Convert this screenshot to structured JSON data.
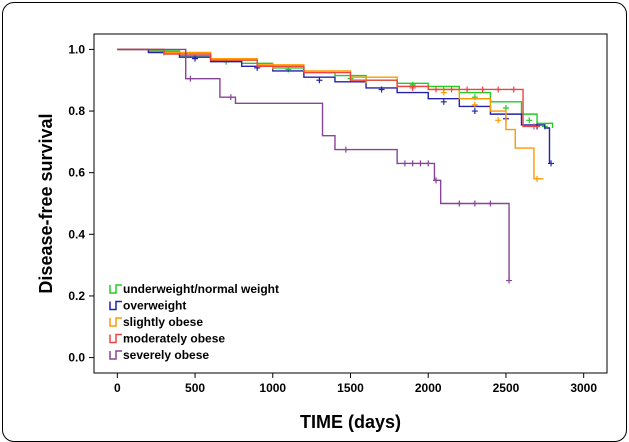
{
  "chart_data": {
    "type": "line",
    "step": true,
    "xlabel": "TIME (days)",
    "ylabel": "Disease-free survival",
    "xlim": [
      -150,
      3150
    ],
    "ylim": [
      -0.05,
      1.05
    ],
    "xticks": [
      0,
      500,
      1000,
      1500,
      2000,
      2500,
      3000
    ],
    "yticks": [
      0.0,
      0.2,
      0.4,
      0.6,
      0.8,
      1.0
    ],
    "ytick_labels": [
      "0.0",
      "0.2",
      "0.4",
      "0.6",
      "0.8",
      "1.0"
    ],
    "legend_position": "bottom-left",
    "series": [
      {
        "name": "underweight/normal weight",
        "color": "#22cc22",
        "points": [
          [
            0,
            1.0
          ],
          [
            200,
            0.995
          ],
          [
            400,
            0.98
          ],
          [
            600,
            0.965
          ],
          [
            800,
            0.955
          ],
          [
            1000,
            0.94
          ],
          [
            1200,
            0.925
          ],
          [
            1400,
            0.915
          ],
          [
            1600,
            0.9
          ],
          [
            1800,
            0.89
          ],
          [
            2000,
            0.88
          ],
          [
            2200,
            0.86
          ],
          [
            2400,
            0.83
          ],
          [
            2600,
            0.79
          ],
          [
            2700,
            0.76
          ],
          [
            2800,
            0.745
          ]
        ],
        "censor": [
          [
            300,
            0.99
          ],
          [
            700,
            0.96
          ],
          [
            1100,
            0.935
          ],
          [
            1500,
            0.905
          ],
          [
            1900,
            0.885
          ],
          [
            2100,
            0.87
          ],
          [
            2300,
            0.845
          ],
          [
            2500,
            0.81
          ],
          [
            2650,
            0.77
          ],
          [
            2750,
            0.75
          ]
        ]
      },
      {
        "name": "overweight",
        "color": "#2222aa",
        "points": [
          [
            0,
            1.0
          ],
          [
            200,
            0.99
          ],
          [
            400,
            0.975
          ],
          [
            600,
            0.96
          ],
          [
            800,
            0.945
          ],
          [
            1000,
            0.93
          ],
          [
            1200,
            0.91
          ],
          [
            1400,
            0.895
          ],
          [
            1600,
            0.875
          ],
          [
            1800,
            0.86
          ],
          [
            2000,
            0.84
          ],
          [
            2200,
            0.815
          ],
          [
            2400,
            0.79
          ],
          [
            2600,
            0.755
          ],
          [
            2750,
            0.745
          ],
          [
            2780,
            0.63
          ]
        ],
        "censor": [
          [
            500,
            0.97
          ],
          [
            900,
            0.94
          ],
          [
            1300,
            0.9
          ],
          [
            1700,
            0.87
          ],
          [
            2100,
            0.83
          ],
          [
            2300,
            0.8
          ],
          [
            2500,
            0.775
          ],
          [
            2700,
            0.75
          ],
          [
            2790,
            0.63
          ]
        ]
      },
      {
        "name": "slightly obese",
        "color": "#ff9900",
        "points": [
          [
            0,
            1.0
          ],
          [
            300,
            0.99
          ],
          [
            600,
            0.97
          ],
          [
            900,
            0.95
          ],
          [
            1200,
            0.93
          ],
          [
            1500,
            0.91
          ],
          [
            1800,
            0.88
          ],
          [
            2000,
            0.87
          ],
          [
            2200,
            0.84
          ],
          [
            2400,
            0.8
          ],
          [
            2500,
            0.74
          ],
          [
            2560,
            0.68
          ],
          [
            2680,
            0.58
          ],
          [
            2740,
            0.58
          ]
        ],
        "censor": [
          [
            1000,
            0.945
          ],
          [
            1600,
            0.9
          ],
          [
            2100,
            0.86
          ],
          [
            2300,
            0.82
          ],
          [
            2450,
            0.77
          ],
          [
            2700,
            0.58
          ]
        ]
      },
      {
        "name": "moderately obese",
        "color": "#ee4444",
        "points": [
          [
            0,
            1.0
          ],
          [
            300,
            0.985
          ],
          [
            600,
            0.965
          ],
          [
            900,
            0.945
          ],
          [
            1200,
            0.925
          ],
          [
            1500,
            0.9
          ],
          [
            1800,
            0.88
          ],
          [
            2000,
            0.87
          ],
          [
            2200,
            0.87
          ],
          [
            2600,
            0.87
          ],
          [
            2610,
            0.75
          ],
          [
            2720,
            0.75
          ]
        ],
        "censor": [
          [
            1900,
            0.875
          ],
          [
            2050,
            0.87
          ],
          [
            2150,
            0.87
          ],
          [
            2250,
            0.87
          ],
          [
            2350,
            0.87
          ],
          [
            2450,
            0.87
          ],
          [
            2550,
            0.87
          ],
          [
            2680,
            0.75
          ]
        ]
      },
      {
        "name": "severely obese",
        "color": "#884499",
        "points": [
          [
            0,
            1.0
          ],
          [
            440,
            1.0
          ],
          [
            440,
            0.905
          ],
          [
            660,
            0.905
          ],
          [
            660,
            0.845
          ],
          [
            760,
            0.845
          ],
          [
            760,
            0.825
          ],
          [
            1320,
            0.825
          ],
          [
            1320,
            0.72
          ],
          [
            1400,
            0.72
          ],
          [
            1400,
            0.675
          ],
          [
            1800,
            0.675
          ],
          [
            1800,
            0.63
          ],
          [
            2040,
            0.63
          ],
          [
            2040,
            0.575
          ],
          [
            2080,
            0.575
          ],
          [
            2080,
            0.5
          ],
          [
            2520,
            0.5
          ],
          [
            2520,
            0.25
          ]
        ],
        "censor": [
          [
            470,
            0.905
          ],
          [
            730,
            0.845
          ],
          [
            1470,
            0.675
          ],
          [
            1850,
            0.63
          ],
          [
            1900,
            0.63
          ],
          [
            1950,
            0.63
          ],
          [
            2000,
            0.63
          ],
          [
            2050,
            0.575
          ],
          [
            2200,
            0.5
          ],
          [
            2300,
            0.5
          ],
          [
            2400,
            0.5
          ],
          [
            2520,
            0.25
          ]
        ]
      }
    ]
  }
}
